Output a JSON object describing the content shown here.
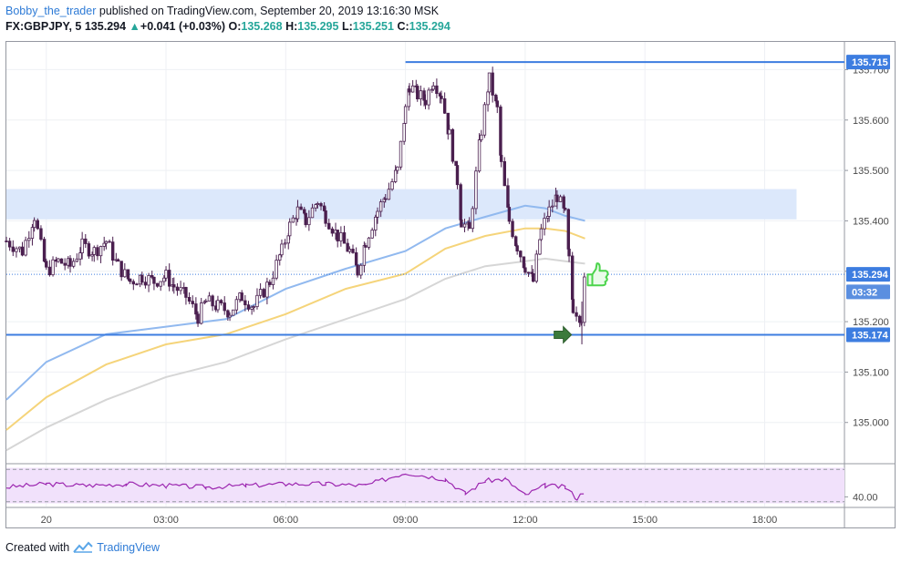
{
  "header": {
    "author": "Bobby_the_trader",
    "published_text": "published on TradingView.com, September 20, 2019 13:16:30 MSK",
    "symbol": "FX:GBPJPY, 5",
    "last": "135.294",
    "change_arrow": "▲",
    "change": "+0.041 (+0.03%)",
    "o_label": "O:",
    "o": "135.268",
    "h_label": "H:",
    "h": "135.295",
    "l_label": "L:",
    "l": "135.251",
    "c_label": "C:",
    "c": "135.294"
  },
  "footer": {
    "created_with": "Created with",
    "brand": "TradingView"
  },
  "colors": {
    "up": "#26a69a",
    "candle": "#4a1f4f",
    "level_line": "#3d7de0",
    "zone": "#dce8fb",
    "ma_fast": "#91b9ef",
    "ma_mid": "#f5d47a",
    "ma_slow": "#d6d6d6",
    "rsi_line": "#9c27b0",
    "rsi_band": "#f1e1fb",
    "price_tag": "#3d7de0",
    "arrow": "#3b7a3b",
    "thumb": "#4cd44c"
  },
  "chart_data": {
    "type": "candlestick",
    "symbol": "FX:GBPJPY",
    "timeframe": "5",
    "x_axis": {
      "range_hours": [
        -1.0,
        20.0
      ],
      "ticks": [
        {
          "label": "20",
          "hour": 0
        },
        {
          "label": "03:00",
          "hour": 3
        },
        {
          "label": "06:00",
          "hour": 6
        },
        {
          "label": "09:00",
          "hour": 9
        },
        {
          "label": "12:00",
          "hour": 12
        },
        {
          "label": "15:00",
          "hour": 15
        },
        {
          "label": "18:00",
          "hour": 18
        }
      ]
    },
    "y_axis": {
      "range": [
        134.92,
        135.755
      ],
      "ticks": [
        "135.000",
        "135.100",
        "135.200",
        "135.300",
        "135.400",
        "135.500",
        "135.600",
        "135.700"
      ]
    },
    "price_labels": [
      {
        "text": "135.715",
        "value": 135.715
      },
      {
        "text": "135.294",
        "value": 135.294
      },
      {
        "text": "03:32",
        "value": 135.259
      },
      {
        "text": "135.174",
        "value": 135.174
      }
    ],
    "horizontal_lines": [
      135.715,
      135.174
    ],
    "last_price": 135.294,
    "zone": {
      "from_hour": -1.0,
      "to_hour": 18.8,
      "low": 135.403,
      "high": 135.463
    },
    "candles_anchor_close": [
      [
        -1.0,
        135.36
      ],
      [
        -0.6,
        135.34
      ],
      [
        -0.3,
        135.41
      ],
      [
        0.0,
        135.3
      ],
      [
        0.3,
        135.32
      ],
      [
        0.6,
        135.31
      ],
      [
        0.9,
        135.35
      ],
      [
        1.2,
        135.34
      ],
      [
        1.5,
        135.36
      ],
      [
        1.8,
        135.31
      ],
      [
        2.1,
        135.28
      ],
      [
        2.4,
        135.29
      ],
      [
        2.7,
        135.28
      ],
      [
        3.0,
        135.29
      ],
      [
        3.2,
        135.27
      ],
      [
        3.5,
        135.25
      ],
      [
        3.8,
        135.21
      ],
      [
        4.0,
        135.24
      ],
      [
        4.3,
        135.23
      ],
      [
        4.6,
        135.22
      ],
      [
        4.9,
        135.25
      ],
      [
        5.2,
        135.23
      ],
      [
        5.6,
        135.28
      ],
      [
        5.9,
        135.34
      ],
      [
        6.1,
        135.39
      ],
      [
        6.3,
        135.42
      ],
      [
        6.5,
        135.4
      ],
      [
        6.8,
        135.44
      ],
      [
        7.0,
        135.41
      ],
      [
        7.3,
        135.37
      ],
      [
        7.6,
        135.34
      ],
      [
        7.8,
        135.3
      ],
      [
        8.0,
        135.36
      ],
      [
        8.3,
        135.42
      ],
      [
        8.5,
        135.45
      ],
      [
        8.8,
        135.5
      ],
      [
        9.0,
        135.62
      ],
      [
        9.1,
        135.67
      ],
      [
        9.3,
        135.65
      ],
      [
        9.5,
        135.64
      ],
      [
        9.7,
        135.68
      ],
      [
        9.9,
        135.65
      ],
      [
        10.1,
        135.57
      ],
      [
        10.3,
        135.48
      ],
      [
        10.4,
        135.4
      ],
      [
        10.6,
        135.38
      ],
      [
        10.9,
        135.58
      ],
      [
        11.1,
        135.68
      ],
      [
        11.3,
        135.62
      ],
      [
        11.4,
        135.51
      ],
      [
        11.6,
        135.4
      ],
      [
        11.8,
        135.35
      ],
      [
        12.0,
        135.31
      ],
      [
        12.2,
        135.28
      ],
      [
        12.4,
        135.38
      ],
      [
        12.6,
        135.42
      ],
      [
        12.8,
        135.45
      ],
      [
        13.0,
        135.41
      ],
      [
        13.1,
        135.32
      ],
      [
        13.2,
        135.23
      ],
      [
        13.4,
        135.21
      ],
      [
        13.5,
        135.29
      ]
    ],
    "moving_averages": [
      {
        "color_key": "ma_fast",
        "points": [
          [
            -1.0,
            135.045
          ],
          [
            0.0,
            135.12
          ],
          [
            1.5,
            135.175
          ],
          [
            3.0,
            135.19
          ],
          [
            4.5,
            135.205
          ],
          [
            6.0,
            135.265
          ],
          [
            7.5,
            135.305
          ],
          [
            9.0,
            135.34
          ],
          [
            10.0,
            135.385
          ],
          [
            11.0,
            135.408
          ],
          [
            12.0,
            135.43
          ],
          [
            12.5,
            135.425
          ],
          [
            13.0,
            135.41
          ],
          [
            13.5,
            135.4
          ]
        ]
      },
      {
        "color_key": "ma_mid",
        "points": [
          [
            -1.0,
            134.985
          ],
          [
            0.0,
            135.05
          ],
          [
            1.5,
            135.115
          ],
          [
            3.0,
            135.155
          ],
          [
            4.5,
            135.175
          ],
          [
            6.0,
            135.215
          ],
          [
            7.5,
            135.265
          ],
          [
            9.0,
            135.295
          ],
          [
            10.0,
            135.345
          ],
          [
            11.0,
            135.37
          ],
          [
            12.0,
            135.385
          ],
          [
            12.5,
            135.385
          ],
          [
            13.0,
            135.38
          ],
          [
            13.5,
            135.365
          ]
        ]
      },
      {
        "color_key": "ma_slow",
        "points": [
          [
            -1.0,
            134.945
          ],
          [
            0.0,
            134.99
          ],
          [
            1.5,
            135.045
          ],
          [
            3.0,
            135.09
          ],
          [
            4.5,
            135.12
          ],
          [
            6.0,
            135.165
          ],
          [
            7.5,
            135.205
          ],
          [
            9.0,
            135.245
          ],
          [
            10.0,
            135.285
          ],
          [
            11.0,
            135.31
          ],
          [
            12.0,
            135.32
          ],
          [
            12.5,
            135.325
          ],
          [
            13.0,
            135.32
          ],
          [
            13.5,
            135.315
          ]
        ]
      }
    ],
    "rsi": {
      "range": [
        34,
        60
      ],
      "ticks": [
        "40.00"
      ],
      "band": [
        30,
        70
      ],
      "points": [
        [
          -1.0,
          46
        ],
        [
          0.0,
          48
        ],
        [
          1.0,
          47
        ],
        [
          2.0,
          48
        ],
        [
          3.0,
          47
        ],
        [
          4.0,
          46
        ],
        [
          5.0,
          47
        ],
        [
          6.0,
          48
        ],
        [
          7.0,
          48
        ],
        [
          8.0,
          47
        ],
        [
          9.0,
          55
        ],
        [
          10.0,
          51
        ],
        [
          10.5,
          42
        ],
        [
          11.0,
          50
        ],
        [
          11.5,
          51
        ],
        [
          12.0,
          41
        ],
        [
          12.5,
          47
        ],
        [
          13.0,
          46
        ],
        [
          13.3,
          39
        ],
        [
          13.5,
          44
        ]
      ]
    }
  }
}
